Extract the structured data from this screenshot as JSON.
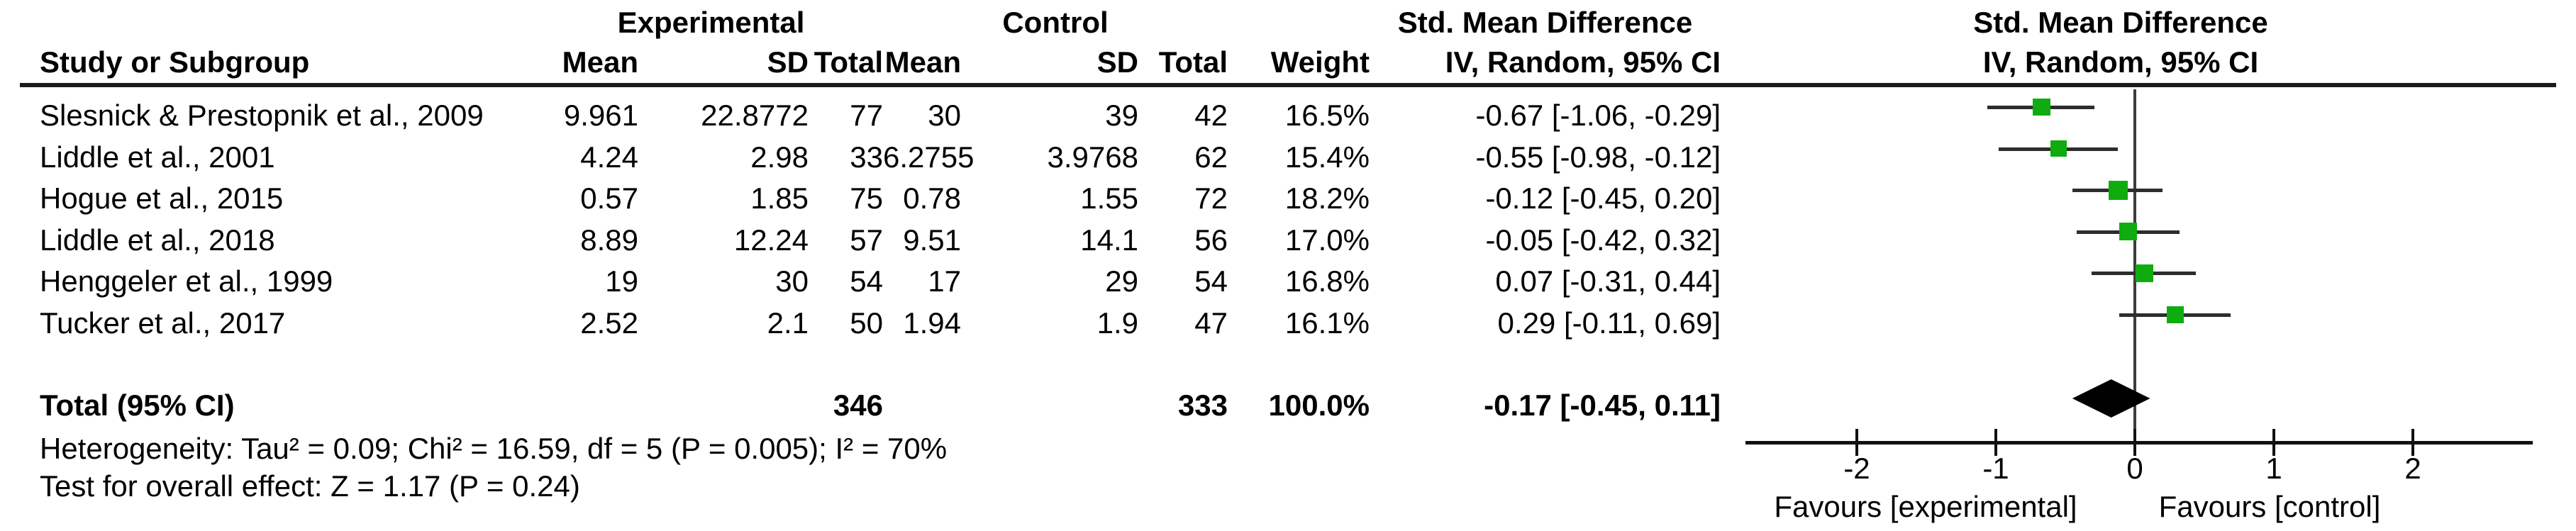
{
  "figure": {
    "group_headers": {
      "experimental": "Experimental",
      "control": "Control",
      "smd_text": "Std. Mean Difference",
      "smd_plot": "Std. Mean Difference"
    },
    "columns": {
      "study": "Study or Subgroup",
      "mean_e": "Mean",
      "sd_e": "SD",
      "total_e": "Total",
      "mean_c": "Mean",
      "sd_c": "SD",
      "total_c": "Total",
      "weight": "Weight",
      "ci_text": "IV, Random, 95% CI",
      "ci_plot": "IV, Random, 95% CI"
    },
    "rows": [
      {
        "study": "Slesnick & Prestopnik et al., 2009",
        "mean_e": "9.961",
        "sd_e": "22.8772",
        "total_e": "77",
        "mean_c": "30",
        "sd_c": "39",
        "total_c": "42",
        "weight": "16.5%",
        "ci": "-0.67 [-1.06, -0.29]"
      },
      {
        "study": "Liddle et al., 2001",
        "mean_e": "4.24",
        "sd_e": "2.98",
        "total_e": "33",
        "mean_c": "6.2755",
        "sd_c": "3.9768",
        "total_c": "62",
        "weight": "15.4%",
        "ci": "-0.55 [-0.98, -0.12]"
      },
      {
        "study": "Hogue et al., 2015",
        "mean_e": "0.57",
        "sd_e": "1.85",
        "total_e": "75",
        "mean_c": "0.78",
        "sd_c": "1.55",
        "total_c": "72",
        "weight": "18.2%",
        "ci": "-0.12 [-0.45, 0.20]"
      },
      {
        "study": "Liddle et al., 2018",
        "mean_e": "8.89",
        "sd_e": "12.24",
        "total_e": "57",
        "mean_c": "9.51",
        "sd_c": "14.1",
        "total_c": "56",
        "weight": "17.0%",
        "ci": "-0.05 [-0.42, 0.32]"
      },
      {
        "study": "Henggeler et al., 1999",
        "mean_e": "19",
        "sd_e": "30",
        "total_e": "54",
        "mean_c": "17",
        "sd_c": "29",
        "total_c": "54",
        "weight": "16.8%",
        "ci": "0.07 [-0.31, 0.44]"
      },
      {
        "study": "Tucker et al., 2017",
        "mean_e": "2.52",
        "sd_e": "2.1",
        "total_e": "50",
        "mean_c": "1.94",
        "sd_c": "1.9",
        "total_c": "47",
        "weight": "16.1%",
        "ci": "0.29 [-0.11, 0.69]"
      }
    ],
    "total_row": {
      "label": "Total (95% CI)",
      "total_e": "346",
      "total_c": "333",
      "weight": "100.0%",
      "ci": "-0.17 [-0.45, 0.11]"
    },
    "footnotes": {
      "heterogeneity": "Heterogeneity: Tau² = 0.09; Chi² = 16.59, df = 5 (P = 0.005); I² = 70%",
      "overall_effect": "Test for overall effect: Z = 1.17 (P = 0.24)"
    },
    "axis": {
      "favours_left": "Favours [experimental]",
      "favours_right": "Favours [control]"
    }
  },
  "colors": {
    "marker_green": "#0fac0f",
    "ci_line": "#2d2d2d",
    "axis": "#111111",
    "zero_line": "#3c3c3c",
    "diamond": "#000000"
  },
  "chart_data": {
    "type": "forest",
    "title": "Std. Mean Difference",
    "method": "IV, Random, 95% CI",
    "studies": [
      "Slesnick & Prestopnik et al., 2009",
      "Liddle et al., 2001",
      "Hogue et al., 2015",
      "Liddle et al., 2018",
      "Henggeler et al., 1999",
      "Tucker et al., 2017"
    ],
    "estimates": [
      -0.67,
      -0.55,
      -0.12,
      -0.05,
      0.07,
      0.29
    ],
    "ci_low": [
      -1.06,
      -0.98,
      -0.45,
      -0.42,
      -0.31,
      -0.11
    ],
    "ci_high": [
      -0.29,
      -0.12,
      0.2,
      0.32,
      0.44,
      0.69
    ],
    "weights_pct": [
      16.5,
      15.4,
      18.2,
      17.0,
      16.8,
      16.1
    ],
    "experimental": {
      "means": [
        9.961,
        4.24,
        0.57,
        8.89,
        19,
        2.52
      ],
      "sds": [
        22.8772,
        2.98,
        1.85,
        12.24,
        30,
        2.1
      ],
      "totals": [
        77,
        33,
        75,
        57,
        54,
        50
      ],
      "total_n": 346
    },
    "control": {
      "means": [
        30,
        6.2755,
        0.78,
        9.51,
        17,
        1.94
      ],
      "sds": [
        39,
        3.9768,
        1.55,
        14.1,
        29,
        1.9
      ],
      "totals": [
        42,
        62,
        72,
        56,
        54,
        47
      ],
      "total_n": 333
    },
    "pooled": {
      "estimate": -0.17,
      "ci_low": -0.45,
      "ci_high": 0.11,
      "weight_pct": 100.0
    },
    "x_axis": {
      "ticks": [
        -2,
        -1,
        0,
        1,
        2
      ],
      "range": [
        -2.8,
        2.86
      ],
      "favours_left": "Favours [experimental]",
      "favours_right": "Favours [control]"
    },
    "heterogeneity": {
      "tau2": 0.09,
      "chi2": 16.59,
      "df": 5,
      "p": 0.005,
      "i2_pct": 70
    },
    "overall_effect": {
      "z": 1.17,
      "p": 0.24
    }
  }
}
